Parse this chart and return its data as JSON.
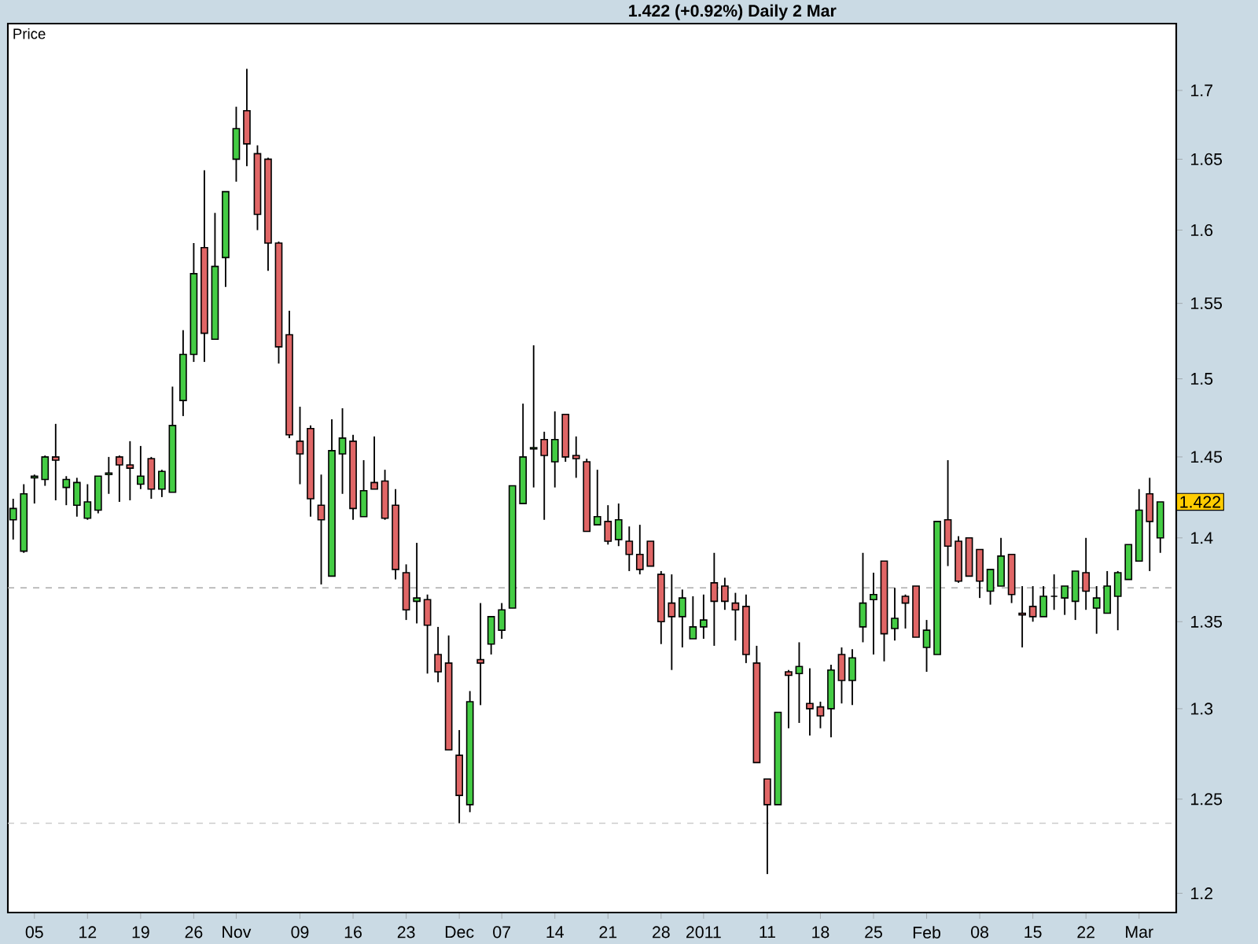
{
  "chart_data": {
    "type": "candlestick",
    "title": "1.422 (+0.92%)    Daily  2 Mar",
    "ylabel": "Price",
    "log": true,
    "categories": [
      null,
      null,
      "05",
      null,
      null,
      null,
      null,
      "12",
      null,
      null,
      null,
      null,
      "19",
      null,
      null,
      null,
      null,
      "26",
      null,
      null,
      null,
      "Nov",
      null,
      null,
      null,
      null,
      null,
      "09",
      null,
      null,
      null,
      null,
      "16",
      null,
      null,
      null,
      null,
      "23",
      null,
      null,
      null,
      null,
      "Dec",
      null,
      null,
      null,
      "07",
      null,
      null,
      null,
      null,
      "14",
      null,
      null,
      null,
      null,
      "21",
      null,
      null,
      null,
      null,
      "28",
      null,
      null,
      null,
      "2011",
      null,
      null,
      null,
      null,
      null,
      "11",
      null,
      null,
      null,
      null,
      "18",
      null,
      null,
      null,
      null,
      "25",
      null,
      null,
      null,
      null,
      "Feb",
      null,
      null,
      null,
      null,
      "08",
      null,
      null,
      null,
      null,
      "15",
      null,
      null,
      null,
      null,
      "22",
      null,
      null,
      null,
      null,
      "Mar",
      null,
      null
    ],
    "ohlc": [
      [
        1.411,
        1.424,
        1.399,
        1.418
      ],
      [
        1.392,
        1.433,
        1.391,
        1.427
      ],
      [
        1.437,
        1.439,
        1.421,
        1.438
      ],
      [
        1.436,
        1.451,
        1.432,
        1.45
      ],
      [
        1.45,
        1.471,
        1.423,
        1.448
      ],
      [
        1.431,
        1.438,
        1.42,
        1.436
      ],
      [
        1.42,
        1.437,
        1.413,
        1.434
      ],
      [
        1.412,
        1.433,
        1.411,
        1.422
      ],
      [
        1.417,
        1.438,
        1.415,
        1.438
      ],
      [
        1.439,
        1.45,
        1.427,
        1.44
      ],
      [
        1.45,
        1.451,
        1.422,
        1.445
      ],
      [
        1.445,
        1.46,
        1.423,
        1.443
      ],
      [
        1.433,
        1.457,
        1.43,
        1.438
      ],
      [
        1.449,
        1.45,
        1.424,
        1.43
      ],
      [
        1.43,
        1.442,
        1.425,
        1.441
      ],
      [
        1.428,
        1.495,
        1.428,
        1.47
      ],
      [
        1.486,
        1.532,
        1.476,
        1.516
      ],
      [
        1.516,
        1.591,
        1.511,
        1.57
      ],
      [
        1.588,
        1.642,
        1.511,
        1.53
      ],
      [
        1.526,
        1.612,
        1.526,
        1.575
      ],
      [
        1.581,
        1.627,
        1.561,
        1.627
      ],
      [
        1.65,
        1.688,
        1.634,
        1.672
      ],
      [
        1.685,
        1.716,
        1.645,
        1.661
      ],
      [
        1.654,
        1.66,
        1.6,
        1.611
      ],
      [
        1.65,
        1.651,
        1.572,
        1.591
      ],
      [
        1.591,
        1.592,
        1.51,
        1.521
      ],
      [
        1.529,
        1.545,
        1.462,
        1.464
      ],
      [
        1.46,
        1.482,
        1.433,
        1.452
      ],
      [
        1.468,
        1.47,
        1.413,
        1.424
      ],
      [
        1.42,
        1.439,
        1.372,
        1.411
      ],
      [
        1.377,
        1.474,
        1.377,
        1.454
      ],
      [
        1.452,
        1.481,
        1.427,
        1.462
      ],
      [
        1.46,
        1.464,
        1.411,
        1.418
      ],
      [
        1.413,
        1.448,
        1.413,
        1.429
      ],
      [
        1.434,
        1.463,
        1.43,
        1.43
      ],
      [
        1.435,
        1.442,
        1.411,
        1.412
      ],
      [
        1.42,
        1.43,
        1.375,
        1.381
      ],
      [
        1.379,
        1.384,
        1.351,
        1.357
      ],
      [
        1.362,
        1.397,
        1.349,
        1.364
      ],
      [
        1.363,
        1.366,
        1.32,
        1.348
      ],
      [
        1.331,
        1.347,
        1.315,
        1.321
      ],
      [
        1.326,
        1.342,
        1.277,
        1.277
      ],
      [
        1.274,
        1.288,
        1.237,
        1.252
      ],
      [
        1.247,
        1.31,
        1.243,
        1.304
      ],
      [
        1.328,
        1.361,
        1.302,
        1.326
      ],
      [
        1.337,
        1.353,
        1.331,
        1.353
      ],
      [
        1.345,
        1.361,
        1.34,
        1.357
      ],
      [
        1.358,
        1.432,
        1.358,
        1.432
      ],
      [
        1.421,
        1.484,
        1.421,
        1.45
      ],
      [
        1.455,
        1.522,
        1.431,
        1.456
      ],
      [
        1.461,
        1.466,
        1.411,
        1.451
      ],
      [
        1.447,
        1.479,
        1.431,
        1.461
      ],
      [
        1.477,
        1.477,
        1.447,
        1.45
      ],
      [
        1.451,
        1.463,
        1.437,
        1.449
      ],
      [
        1.447,
        1.449,
        1.404,
        1.404
      ],
      [
        1.408,
        1.442,
        1.408,
        1.413
      ],
      [
        1.41,
        1.42,
        1.396,
        1.398
      ],
      [
        1.399,
        1.421,
        1.395,
        1.411
      ],
      [
        1.398,
        1.407,
        1.38,
        1.39
      ],
      [
        1.39,
        1.408,
        1.378,
        1.381
      ],
      [
        1.398,
        1.398,
        1.383,
        1.383
      ],
      [
        1.378,
        1.38,
        1.337,
        1.35
      ],
      [
        1.361,
        1.378,
        1.322,
        1.353
      ],
      [
        1.353,
        1.369,
        1.335,
        1.364
      ],
      [
        1.34,
        1.365,
        1.34,
        1.347
      ],
      [
        1.347,
        1.366,
        1.34,
        1.351
      ],
      [
        1.373,
        1.391,
        1.336,
        1.362
      ],
      [
        1.371,
        1.376,
        1.357,
        1.362
      ],
      [
        1.361,
        1.367,
        1.339,
        1.357
      ],
      [
        1.359,
        1.366,
        1.326,
        1.331
      ],
      [
        1.326,
        1.336,
        1.27,
        1.27
      ],
      [
        1.261,
        1.261,
        1.21,
        1.247
      ],
      [
        1.247,
        1.298,
        1.247,
        1.298
      ],
      [
        1.321,
        1.322,
        1.289,
        1.319
      ],
      [
        1.32,
        1.338,
        1.292,
        1.324
      ],
      [
        1.303,
        1.323,
        1.285,
        1.3
      ],
      [
        1.301,
        1.304,
        1.289,
        1.296
      ],
      [
        1.3,
        1.325,
        1.284,
        1.322
      ],
      [
        1.331,
        1.335,
        1.303,
        1.316
      ],
      [
        1.316,
        1.334,
        1.302,
        1.329
      ],
      [
        1.347,
        1.391,
        1.338,
        1.361
      ],
      [
        1.363,
        1.379,
        1.331,
        1.366
      ],
      [
        1.386,
        1.386,
        1.327,
        1.343
      ],
      [
        1.346,
        1.37,
        1.339,
        1.352
      ],
      [
        1.365,
        1.366,
        1.346,
        1.361
      ],
      [
        1.371,
        1.371,
        1.341,
        1.341
      ],
      [
        1.335,
        1.351,
        1.321,
        1.345
      ],
      [
        1.331,
        1.41,
        1.331,
        1.41
      ],
      [
        1.411,
        1.448,
        1.383,
        1.395
      ],
      [
        1.398,
        1.401,
        1.373,
        1.374
      ],
      [
        1.4,
        1.4,
        1.377,
        1.377
      ],
      [
        1.393,
        1.393,
        1.364,
        1.374
      ],
      [
        1.368,
        1.381,
        1.36,
        1.381
      ],
      [
        1.371,
        1.4,
        1.371,
        1.389
      ],
      [
        1.39,
        1.39,
        1.361,
        1.366
      ],
      [
        1.355,
        1.371,
        1.335,
        1.354
      ],
      [
        1.359,
        1.371,
        1.35,
        1.353
      ],
      [
        1.353,
        1.371,
        1.353,
        1.365
      ],
      [
        1.365,
        1.378,
        1.357,
        1.365
      ],
      [
        1.364,
        1.371,
        1.354,
        1.371
      ],
      [
        1.362,
        1.38,
        1.351,
        1.38
      ],
      [
        1.379,
        1.4,
        1.357,
        1.368
      ],
      [
        1.358,
        1.371,
        1.343,
        1.364
      ],
      [
        1.355,
        1.38,
        1.355,
        1.371
      ],
      [
        1.365,
        1.38,
        1.345,
        1.379
      ],
      [
        1.375,
        1.396,
        1.375,
        1.396
      ],
      [
        1.386,
        1.43,
        1.386,
        1.417
      ],
      [
        1.427,
        1.437,
        1.38,
        1.41
      ],
      [
        1.4,
        1.422,
        1.391,
        1.422
      ]
    ],
    "colors": [
      "#44cc44",
      "#44cc44",
      "#44cc44",
      "#44cc44",
      "#e06666",
      "#44cc44",
      "#44cc44",
      "#44cc44",
      "#44cc44",
      "#44cc44",
      "#e06666",
      "#e06666",
      "#44cc44",
      "#e06666",
      "#44cc44",
      "#44cc44",
      "#44cc44",
      "#44cc44",
      "#e06666",
      "#44cc44",
      "#44cc44",
      "#44cc44",
      "#e06666",
      "#e06666",
      "#e06666",
      "#e06666",
      "#e06666",
      "#e06666",
      "#e06666",
      "#e06666",
      "#44cc44",
      "#44cc44",
      "#e06666",
      "#44cc44",
      "#e06666",
      "#e06666",
      "#e06666",
      "#e06666",
      "#44cc44",
      "#e06666",
      "#e06666",
      "#e06666",
      "#e06666",
      "#44cc44",
      "#e06666",
      "#44cc44",
      "#44cc44",
      "#44cc44",
      "#44cc44",
      "#44cc44",
      "#e06666",
      "#44cc44",
      "#e06666",
      "#e06666",
      "#e06666",
      "#44cc44",
      "#e06666",
      "#44cc44",
      "#e06666",
      "#e06666",
      "#e06666",
      "#e06666",
      "#e06666",
      "#44cc44",
      "#44cc44",
      "#44cc44",
      "#e06666",
      "#e06666",
      "#e06666",
      "#e06666",
      "#e06666",
      "#e06666",
      "#44cc44",
      "#e06666",
      "#44cc44",
      "#e06666",
      "#e06666",
      "#44cc44",
      "#e06666",
      "#44cc44",
      "#44cc44",
      "#44cc44",
      "#e06666",
      "#44cc44",
      "#e06666",
      "#e06666",
      "#44cc44",
      "#44cc44",
      "#e06666",
      "#e06666",
      "#e06666",
      "#e06666",
      "#44cc44",
      "#44cc44",
      "#e06666",
      "#e06666",
      "#e06666",
      "#44cc44",
      "#000000",
      "#44cc44",
      "#44cc44",
      "#e06666",
      "#44cc44",
      "#44cc44",
      "#44cc44",
      "#44cc44",
      "#44cc44",
      "#e06666",
      "#44cc44"
    ],
    "ylim": [
      1.19,
      1.75
    ],
    "yticks": [
      1.2,
      1.25,
      1.3,
      1.35,
      1.4,
      1.45,
      1.5,
      1.55,
      1.6,
      1.65,
      1.7
    ],
    "ref_lines": [
      {
        "axis": "y",
        "value": 1.37,
        "color": "#aaaaaa",
        "line_style": "dashed"
      },
      {
        "axis": "y",
        "value": 1.237,
        "color": "#cccccc",
        "line_style": "dashed"
      }
    ],
    "annotations": [
      {
        "text": "1.422",
        "y": 1.422
      }
    ]
  }
}
